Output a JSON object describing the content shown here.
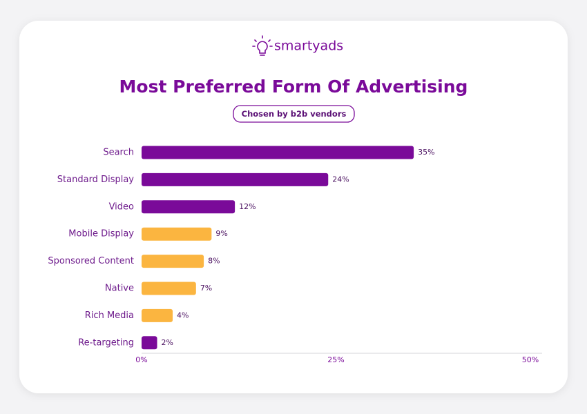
{
  "brand": "smartyads",
  "chart_data": {
    "type": "hbar",
    "title": "Most Preferred Form Of Advertising",
    "subtitle": "Chosen by b2b vendors",
    "categories": [
      "Search",
      "Standard Display",
      "Video",
      "Mobile Display",
      "Sponsored Content",
      "Native",
      "Rich Media",
      "Re-targeting"
    ],
    "values": [
      35,
      24,
      12,
      9,
      8,
      7,
      4,
      2
    ],
    "value_labels": [
      "35%",
      "24%",
      "12%",
      "9%",
      "8%",
      "7%",
      "4%",
      "2%"
    ],
    "colors": [
      "#7a0a99",
      "#7a0a99",
      "#7a0a99",
      "#fbb540",
      "#fbb540",
      "#fbb540",
      "#fbb540",
      "#7a0a99"
    ],
    "xlim": [
      0,
      50
    ],
    "xticks": [
      {
        "value": 0,
        "label": "0%"
      },
      {
        "value": 25,
        "label": "25%"
      },
      {
        "value": 50,
        "label": "50%"
      }
    ],
    "grid": false
  }
}
